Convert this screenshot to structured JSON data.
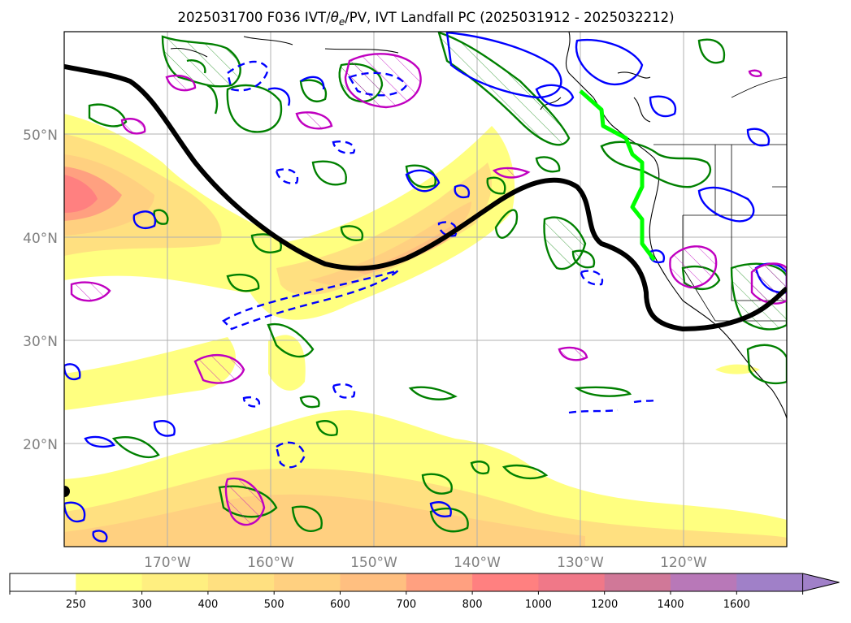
{
  "title": {
    "prefix": "2025031700 F036 IVT/",
    "theta": "θ",
    "theta_sub": "e",
    "suffix": "/PV, IVT Landfall PC (2025031912 - 2025032212)"
  },
  "map": {
    "extent": {
      "lon_min": -180,
      "lon_max": -110,
      "lat_min": 10,
      "lat_max": 60
    },
    "lat_ticks": [
      {
        "value": 20,
        "label": "20°N"
      },
      {
        "value": 30,
        "label": "30°N"
      },
      {
        "value": 40,
        "label": "40°N"
      },
      {
        "value": 50,
        "label": "50°N"
      }
    ],
    "lon_ticks": [
      {
        "value": -170,
        "label": "170°W"
      },
      {
        "value": -160,
        "label": "160°W"
      },
      {
        "value": -150,
        "label": "150°W"
      },
      {
        "value": -140,
        "label": "140°W"
      },
      {
        "value": -130,
        "label": "130°W"
      },
      {
        "value": -120,
        "label": "120°W"
      }
    ],
    "grid": true,
    "layers": {
      "ivt_shading": "filled contours",
      "theta_e": "green contours",
      "pv_positive": "blue solid contours",
      "pv_negative": "blue dashed contours",
      "landfall_region": "magenta hatched contours",
      "landfall_point_line": "bright green line",
      "main_contour": "thick black line"
    }
  },
  "colorbar": {
    "levels": [
      {
        "label": "",
        "color": "#ffffff"
      },
      {
        "label": "250",
        "color": "#ffff80"
      },
      {
        "label": "300",
        "color": "#ffef80"
      },
      {
        "label": "400",
        "color": "#ffe080"
      },
      {
        "label": "500",
        "color": "#ffd080"
      },
      {
        "label": "600",
        "color": "#ffbf80"
      },
      {
        "label": "700",
        "color": "#ffa080"
      },
      {
        "label": "800",
        "color": "#ff8080"
      },
      {
        "label": "1000",
        "color": "#f07888"
      },
      {
        "label": "1200",
        "color": "#d07898"
      },
      {
        "label": "1400",
        "color": "#b878b8"
      },
      {
        "label": "1600",
        "color": "#a080c8"
      }
    ],
    "extend": "max",
    "extend_color": "#a080c8"
  },
  "colors": {
    "theta_e": "#008000",
    "pv": "#0000ff",
    "landfall": "#c000c0",
    "landfall_line": "#00ff00",
    "main_contour": "#000000",
    "grid": "#b0b0b0",
    "coast": "#000000"
  }
}
